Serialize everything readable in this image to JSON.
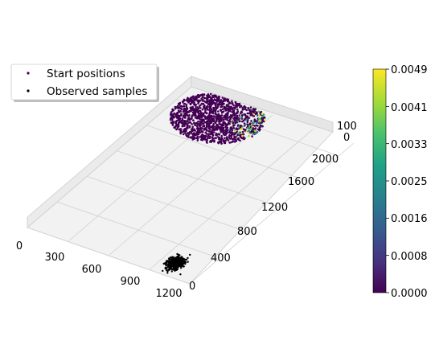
{
  "chart_data": {
    "type": "scatter",
    "projection": "3d",
    "title": "",
    "xlabel": "",
    "ylabel": "",
    "zlabel": "",
    "xlim": [
      0,
      1200
    ],
    "ylim": [
      0,
      2200
    ],
    "zlim": [
      0,
      100
    ],
    "x_ticks": [
      "0",
      "300",
      "600",
      "900",
      "1200"
    ],
    "y_ticks": [
      "0",
      "400",
      "800",
      "1200",
      "1600",
      "2000"
    ],
    "z_ticks": [
      "0",
      "100"
    ],
    "grid": true,
    "legend_position": "upper-left",
    "series": [
      {
        "name": "Start positions",
        "color_by": "value",
        "colormap": "viridis",
        "dominant_color": "#440154",
        "cloud": {
          "x_center": 330,
          "x_spread": 300,
          "y_center": 1950,
          "y_spread": 330,
          "z": 0
        },
        "value_range": [
          0.0,
          0.0049
        ],
        "high_value_region": {
          "x_center": 580,
          "y_center": 2020
        }
      },
      {
        "name": "Observed samples",
        "color": "#000000",
        "cloud": {
          "x_center": 1000,
          "x_spread": 60,
          "y_center": 180,
          "y_spread": 100,
          "z": 0
        }
      }
    ],
    "colorbar": {
      "colormap": "viridis",
      "min": 0.0,
      "max": 0.0049,
      "tick_labels": [
        "0.0000",
        "0.0008",
        "0.0016",
        "0.0025",
        "0.0033",
        "0.0041",
        "0.0049"
      ]
    }
  },
  "legend": {
    "start_label": "Start positions",
    "observed_label": "Observed samples",
    "start_color": "#440154",
    "observed_color": "#000000"
  }
}
